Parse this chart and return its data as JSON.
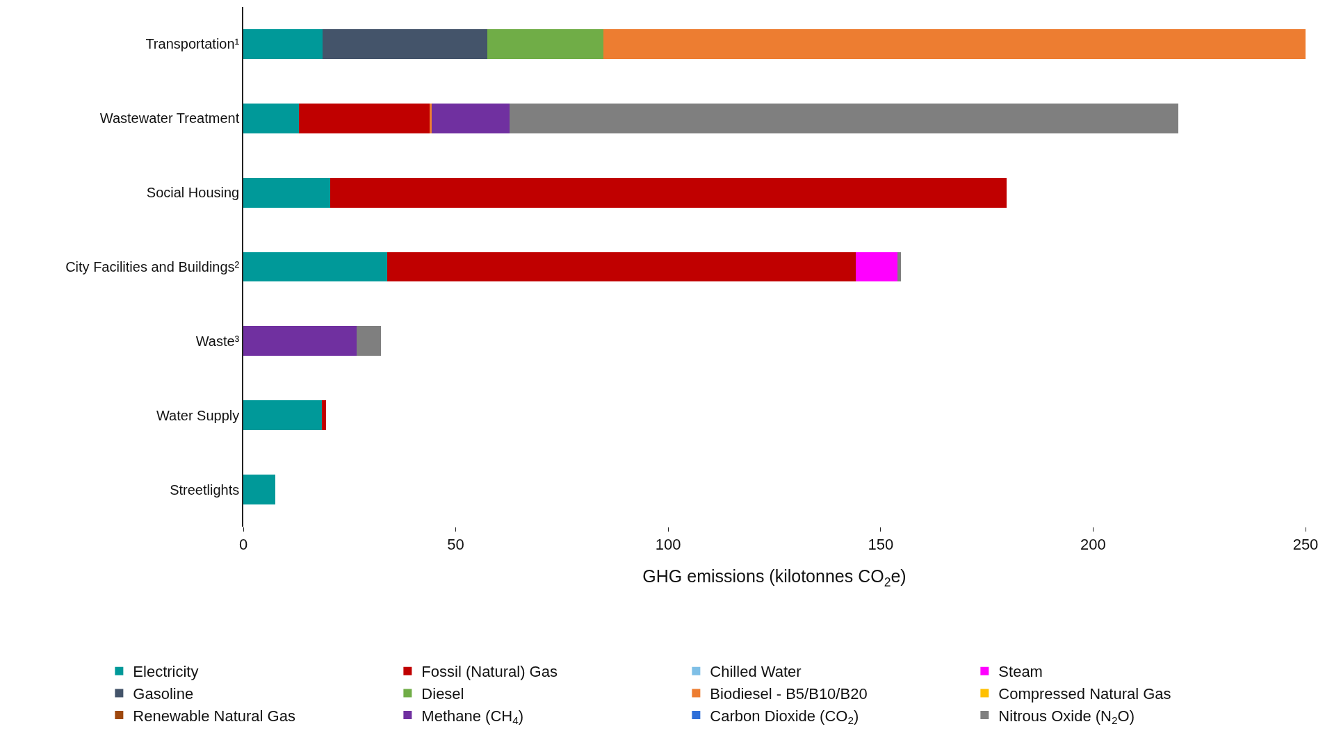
{
  "chart_data": {
    "type": "bar",
    "orientation": "horizontal",
    "stacked": true,
    "categories": [
      "Transportation¹",
      "Wastewater Treatment",
      "Social Housing",
      "City Facilities and Buildings²",
      "Waste³",
      "Water Supply",
      "Streetlights"
    ],
    "xlabel": "GHG emissions (kilotonnes CO$_{2}$e)",
    "xlim": [
      0,
      250
    ],
    "xticks": [
      0,
      50,
      100,
      150,
      200,
      250
    ],
    "legend": "bottom",
    "series": [
      {
        "name": "Electricity",
        "color": "#009999",
        "values": [
          18.7,
          13.1,
          20.5,
          33.8,
          0,
          18.5,
          7.6
        ]
      },
      {
        "name": "Fossil (Natural) Gas",
        "color": "#c00000",
        "values": [
          0,
          30.9,
          159.1,
          110.4,
          0,
          1.0,
          0
        ]
      },
      {
        "name": "Chilled Water",
        "color": "#7fbfe6",
        "values": [
          0,
          0,
          0,
          0,
          0,
          0,
          0
        ]
      },
      {
        "name": "Steam",
        "color": "#ff00ff",
        "values": [
          0,
          0,
          0,
          9.7,
          0,
          0,
          0
        ]
      },
      {
        "name": "Gasoline",
        "color": "#44546a",
        "values": [
          38.8,
          0,
          0,
          0,
          0,
          0,
          0
        ]
      },
      {
        "name": "Diesel",
        "color": "#70ad47",
        "values": [
          27.2,
          0,
          0,
          0,
          0,
          0,
          0
        ]
      },
      {
        "name": "Biodiesel - B5/B10/B20",
        "color": "#ed7d31",
        "values": [
          165.3,
          0.3,
          0,
          0,
          0,
          0,
          0
        ]
      },
      {
        "name": "Compressed Natural Gas",
        "color": "#ffc000",
        "values": [
          0,
          0,
          0,
          0,
          0,
          0,
          0
        ]
      },
      {
        "name": "Renewable Natural Gas",
        "color": "#9e480e",
        "values": [
          0,
          0,
          0,
          0,
          0,
          0,
          0
        ]
      },
      {
        "name": "Methane (CH$_{4}$)",
        "color": "#7030a0",
        "values": [
          0,
          18.3,
          0,
          0,
          26.7,
          0,
          0
        ]
      },
      {
        "name": "Carbon Dioxide (CO$_{2}$)",
        "color": "#2e6fd8",
        "values": [
          0,
          0,
          0,
          0,
          0,
          0,
          0
        ]
      },
      {
        "name": "Nitrous Oxide (N$_{2}$O)",
        "color": "#7f7f7f",
        "values": [
          0,
          157.4,
          0,
          0.8,
          5.7,
          0,
          0
        ]
      }
    ]
  }
}
